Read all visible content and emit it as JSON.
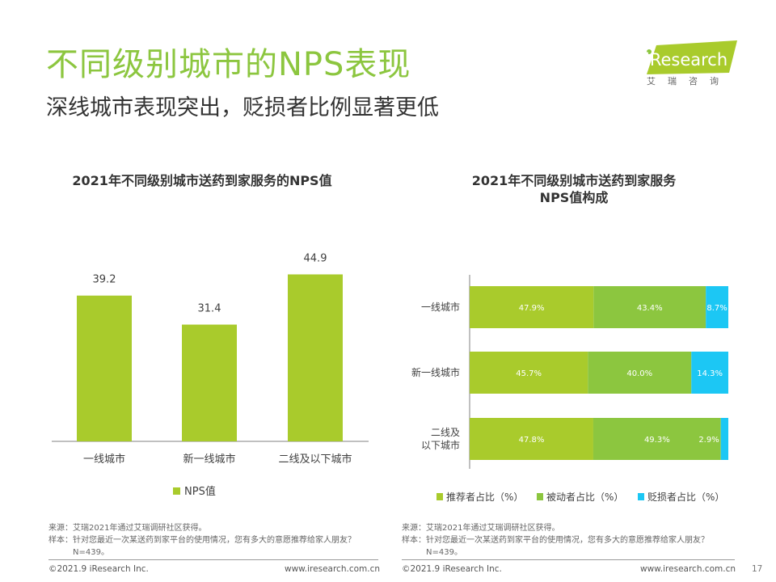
{
  "header": {
    "title": "不同级别城市的NPS表现",
    "subtitle": "深线城市表现突出，贬损者比例显著更低"
  },
  "logo": {
    "brand": "iResearch",
    "sub": "艾瑞咨询"
  },
  "colors": {
    "accent": "#8cc63f",
    "promoter": "#a9cb2c",
    "passive": "#8cc63f",
    "detractor": "#1cc7f4"
  },
  "chart_data": [
    {
      "type": "bar",
      "title": "2021年不同级别城市送药到家服务的NPS值",
      "categories": [
        "一线城市",
        "新一线城市",
        "二线及以下城市"
      ],
      "series": [
        {
          "name": "NPS值",
          "values": [
            39.2,
            31.4,
            44.9
          ]
        }
      ],
      "ylim": [
        0,
        50
      ],
      "grid": false,
      "legend": "bottom"
    },
    {
      "type": "bar",
      "orientation": "horizontal",
      "stacked": true,
      "title_lines": [
        "2021年不同级别城市送药到家服务",
        "NPS值构成"
      ],
      "categories": [
        "一线城市",
        "新一线城市",
        "二线及以下城市"
      ],
      "category_label_lines": [
        [
          "一线城市"
        ],
        [
          "新一线城市"
        ],
        [
          "二线及",
          "以下城市"
        ]
      ],
      "series": [
        {
          "name": "推荐者占比（%）",
          "values": [
            47.9,
            45.7,
            47.8
          ],
          "labels": [
            "47.9%",
            "45.7%",
            "47.8%"
          ]
        },
        {
          "name": "被动者占比（%）",
          "values": [
            43.4,
            40.0,
            49.3
          ],
          "labels": [
            "43.4%",
            "40.0%",
            "49.3%"
          ]
        },
        {
          "name": "贬损者占比（%）",
          "values": [
            8.7,
            14.3,
            2.9
          ],
          "labels": [
            "8.7%",
            "14.3%",
            "2.9%"
          ]
        }
      ],
      "xlim": [
        0,
        100
      ],
      "grid": false,
      "legend": "bottom"
    }
  ],
  "notes": {
    "source": "来源：艾瑞2021年通过艾瑞调研社区获得。",
    "sample": "样本：针对您最近一次某送药到家平台的使用情况，您有多大的意愿推荐给家人朋友？",
    "n": "N=439。"
  },
  "footer": {
    "copyright": "©2021.9 iResearch Inc.",
    "url": "www.iresearch.com.cn",
    "page": "17"
  }
}
